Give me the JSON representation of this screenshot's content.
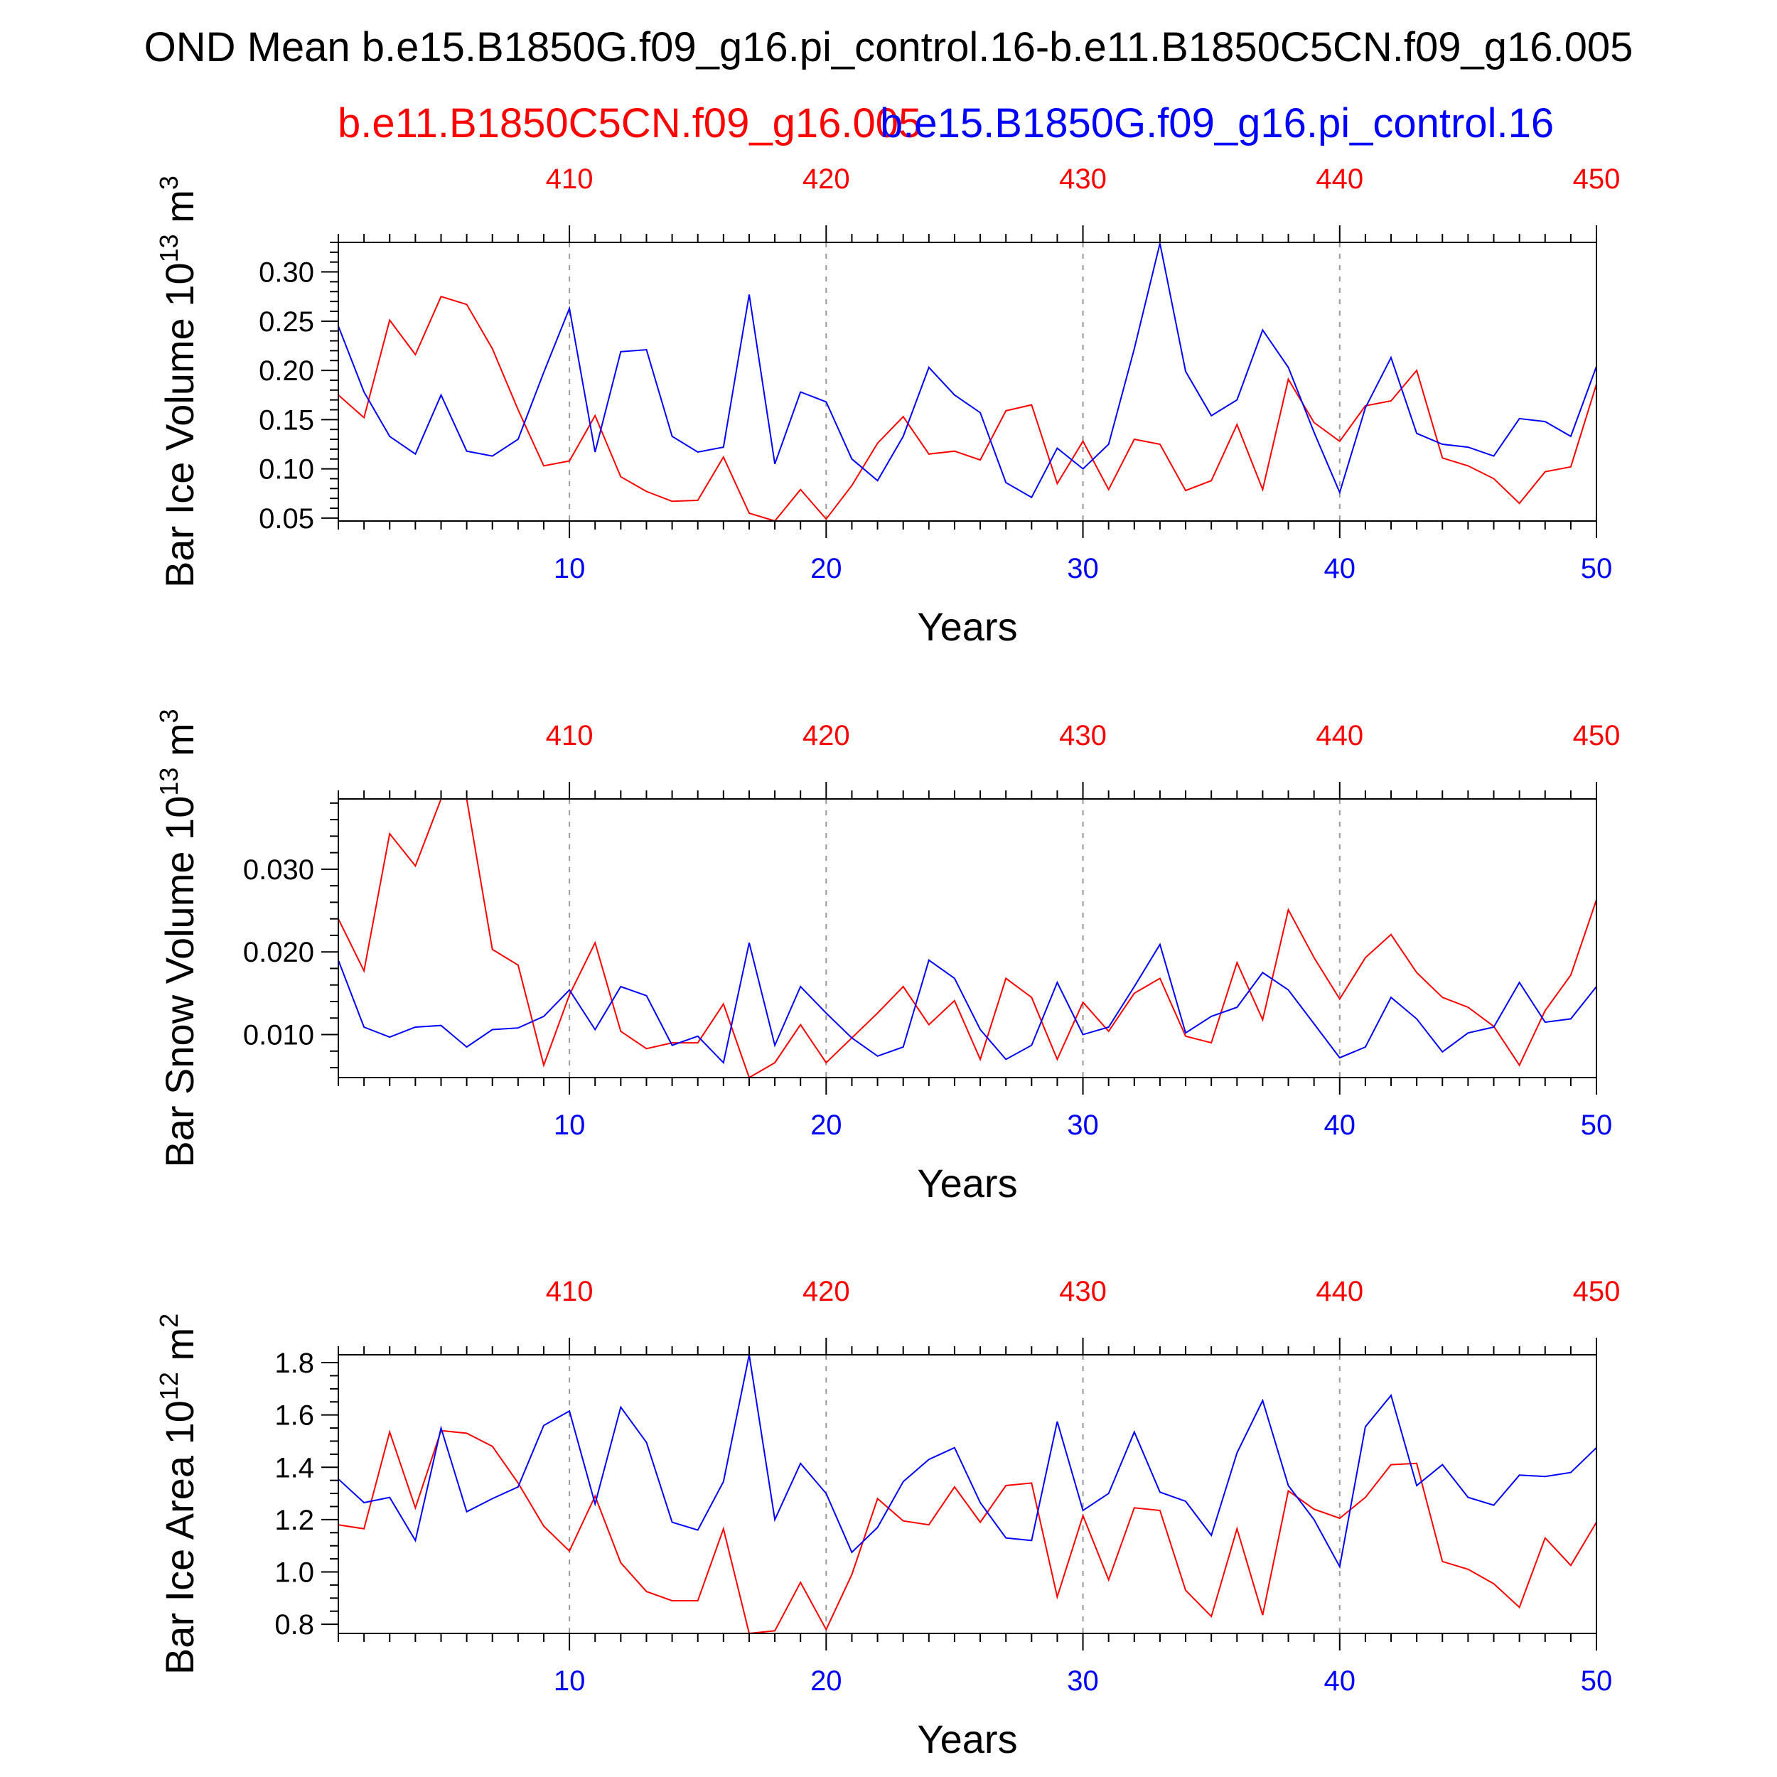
{
  "title": "OND Mean b.e15.B1850G.f09_g16.pi_control.16-b.e11.B1850C5CN.f09_g16.005",
  "subtitle_red": "b.e11.B1850C5CN.f09_g16.005",
  "subtitle_blue": "b.e15.B1850G.f09_g16.pi_control.16",
  "colors": {
    "red": "#ff0000",
    "blue": "#0000ff",
    "axis": "#000000",
    "grid": "#999999"
  },
  "chart_data": [
    {
      "type": "line",
      "ylabel_main": "Bar Ice Volume 10",
      "ylabel_exp": "13",
      "ylabel_unit": " m",
      "ylabel_unit_exp": "3",
      "xlabel": "Years",
      "xlim": [
        1,
        50
      ],
      "ylim": [
        0.047,
        0.33
      ],
      "yticks": [
        0.05,
        0.1,
        0.15,
        0.2,
        0.25,
        0.3
      ],
      "ytick_labels": [
        "0.05",
        "0.10",
        "0.15",
        "0.20",
        "0.25",
        "0.30"
      ],
      "yminor_step": 0.01,
      "xticks_bottom": [
        10,
        20,
        30,
        40,
        50
      ],
      "xtick_labels_bottom": [
        "10",
        "20",
        "30",
        "40",
        "50"
      ],
      "xtick_labels_top": [
        "410",
        "420",
        "430",
        "440",
        "450"
      ],
      "grid_x": [
        10,
        20,
        30,
        40
      ],
      "x": [
        1,
        2,
        3,
        4,
        5,
        6,
        7,
        8,
        9,
        10,
        11,
        12,
        13,
        14,
        15,
        16,
        17,
        18,
        19,
        20,
        21,
        22,
        23,
        24,
        25,
        26,
        27,
        28,
        29,
        30,
        31,
        32,
        33,
        34,
        35,
        36,
        37,
        38,
        39,
        40,
        41,
        42,
        43,
        44,
        45,
        46,
        47,
        48,
        49,
        50
      ],
      "series": [
        {
          "color": "red",
          "values": [
            0.175,
            0.152,
            0.251,
            0.216,
            0.275,
            0.267,
            0.222,
            0.16,
            0.103,
            0.108,
            0.154,
            0.092,
            0.077,
            0.067,
            0.068,
            0.112,
            0.055,
            0.047,
            0.079,
            0.049,
            0.083,
            0.126,
            0.153,
            0.115,
            0.118,
            0.109,
            0.159,
            0.165,
            0.085,
            0.128,
            0.079,
            0.13,
            0.125,
            0.078,
            0.088,
            0.145,
            0.079,
            0.191,
            0.147,
            0.128,
            0.164,
            0.169,
            0.2,
            0.111,
            0.103,
            0.09,
            0.065,
            0.097,
            0.102,
            0.186
          ]
        },
        {
          "color": "blue",
          "values": [
            0.245,
            0.178,
            0.133,
            0.115,
            0.175,
            0.118,
            0.113,
            0.13,
            0.198,
            0.263,
            0.117,
            0.219,
            0.221,
            0.133,
            0.117,
            0.122,
            0.277,
            0.105,
            0.178,
            0.168,
            0.11,
            0.088,
            0.133,
            0.203,
            0.175,
            0.157,
            0.086,
            0.071,
            0.121,
            0.1,
            0.125,
            0.222,
            0.329,
            0.199,
            0.154,
            0.17,
            0.241,
            0.203,
            0.137,
            0.076,
            0.162,
            0.213,
            0.136,
            0.125,
            0.122,
            0.113,
            0.151,
            0.148,
            0.133,
            0.204
          ]
        }
      ]
    },
    {
      "type": "line",
      "ylabel_main": "Bar Snow Volume 10",
      "ylabel_exp": "13",
      "ylabel_unit": " m",
      "ylabel_unit_exp": "3",
      "xlabel": "Years",
      "xlim": [
        1,
        50
      ],
      "ylim": [
        0.0048,
        0.0385
      ],
      "yticks": [
        0.01,
        0.02,
        0.03
      ],
      "ytick_labels": [
        "0.010",
        "0.020",
        "0.030"
      ],
      "yminor_step": 0.002,
      "xticks_bottom": [
        10,
        20,
        30,
        40,
        50
      ],
      "xtick_labels_bottom": [
        "10",
        "20",
        "30",
        "40",
        "50"
      ],
      "xtick_labels_top": [
        "410",
        "420",
        "430",
        "440",
        "450"
      ],
      "grid_x": [
        10,
        20,
        30,
        40
      ],
      "x": [
        1,
        2,
        3,
        4,
        5,
        6,
        7,
        8,
        9,
        10,
        11,
        12,
        13,
        14,
        15,
        16,
        17,
        18,
        19,
        20,
        21,
        22,
        23,
        24,
        25,
        26,
        27,
        28,
        29,
        30,
        31,
        32,
        33,
        34,
        35,
        36,
        37,
        38,
        39,
        40,
        41,
        42,
        43,
        44,
        45,
        46,
        47,
        48,
        49,
        50
      ],
      "series": [
        {
          "color": "red",
          "values": [
            0.024,
            0.0177,
            0.0343,
            0.0304,
            0.0385,
            0.0385,
            0.0203,
            0.0184,
            0.0063,
            0.0148,
            0.0211,
            0.0104,
            0.0083,
            0.009,
            0.009,
            0.0137,
            0.0048,
            0.0066,
            0.0112,
            0.0066,
            0.0096,
            0.0126,
            0.0158,
            0.0112,
            0.0141,
            0.007,
            0.0168,
            0.0145,
            0.007,
            0.0139,
            0.0104,
            0.015,
            0.0168,
            0.0098,
            0.009,
            0.0187,
            0.0118,
            0.0251,
            0.0193,
            0.0143,
            0.0193,
            0.0221,
            0.0175,
            0.0145,
            0.0133,
            0.011,
            0.0063,
            0.0129,
            0.0172,
            0.0263
          ]
        },
        {
          "color": "blue",
          "values": [
            0.019,
            0.0109,
            0.0097,
            0.0109,
            0.0111,
            0.0085,
            0.0106,
            0.0108,
            0.0122,
            0.0154,
            0.0106,
            0.0158,
            0.0147,
            0.0087,
            0.0098,
            0.0066,
            0.0211,
            0.0087,
            0.0158,
            0.0126,
            0.0096,
            0.0074,
            0.0085,
            0.019,
            0.0168,
            0.0106,
            0.007,
            0.0087,
            0.0163,
            0.01,
            0.0109,
            0.0158,
            0.0209,
            0.0102,
            0.0122,
            0.0133,
            0.0175,
            0.0154,
            0.0113,
            0.0072,
            0.0085,
            0.0145,
            0.0119,
            0.0079,
            0.0102,
            0.0109,
            0.0163,
            0.0115,
            0.0119,
            0.0158
          ]
        }
      ]
    },
    {
      "type": "line",
      "ylabel_main": "Bar Ice Area 10",
      "ylabel_exp": "12",
      "ylabel_unit": " m",
      "ylabel_unit_exp": "2",
      "xlabel": "Years",
      "xlim": [
        1,
        50
      ],
      "ylim": [
        0.765,
        1.83
      ],
      "yticks": [
        0.8,
        1.0,
        1.2,
        1.4,
        1.6,
        1.8
      ],
      "ytick_labels": [
        "0.8",
        "1.0",
        "1.2",
        "1.4",
        "1.6",
        "1.8"
      ],
      "yminor_step": 0.05,
      "xticks_bottom": [
        10,
        20,
        30,
        40,
        50
      ],
      "xtick_labels_bottom": [
        "10",
        "20",
        "30",
        "40",
        "50"
      ],
      "xtick_labels_top": [
        "410",
        "420",
        "430",
        "440",
        "450"
      ],
      "grid_x": [
        10,
        20,
        30,
        40
      ],
      "x": [
        1,
        2,
        3,
        4,
        5,
        6,
        7,
        8,
        9,
        10,
        11,
        12,
        13,
        14,
        15,
        16,
        17,
        18,
        19,
        20,
        21,
        22,
        23,
        24,
        25,
        26,
        27,
        28,
        29,
        30,
        31,
        32,
        33,
        34,
        35,
        36,
        37,
        38,
        39,
        40,
        41,
        42,
        43,
        44,
        45,
        46,
        47,
        48,
        49,
        50
      ],
      "series": [
        {
          "color": "red",
          "values": [
            1.18,
            1.165,
            1.535,
            1.245,
            1.54,
            1.53,
            1.48,
            1.34,
            1.175,
            1.08,
            1.29,
            1.035,
            0.925,
            0.89,
            0.89,
            1.165,
            0.765,
            0.775,
            0.96,
            0.78,
            0.99,
            1.28,
            1.195,
            1.18,
            1.325,
            1.19,
            1.33,
            1.34,
            0.905,
            1.215,
            0.97,
            1.245,
            1.235,
            0.93,
            0.83,
            1.165,
            0.835,
            1.31,
            1.24,
            1.205,
            1.285,
            1.41,
            1.415,
            1.04,
            1.01,
            0.955,
            0.865,
            1.13,
            1.025,
            1.19
          ]
        },
        {
          "color": "blue",
          "values": [
            1.355,
            1.265,
            1.285,
            1.12,
            1.55,
            1.23,
            1.28,
            1.325,
            1.56,
            1.615,
            1.26,
            1.63,
            1.495,
            1.19,
            1.16,
            1.345,
            1.83,
            1.2,
            1.415,
            1.3,
            1.075,
            1.17,
            1.345,
            1.43,
            1.475,
            1.265,
            1.13,
            1.12,
            1.575,
            1.235,
            1.3,
            1.535,
            1.305,
            1.27,
            1.14,
            1.455,
            1.655,
            1.33,
            1.2,
            1.02,
            1.555,
            1.675,
            1.33,
            1.41,
            1.285,
            1.255,
            1.37,
            1.365,
            1.38,
            1.475
          ]
        }
      ]
    }
  ]
}
